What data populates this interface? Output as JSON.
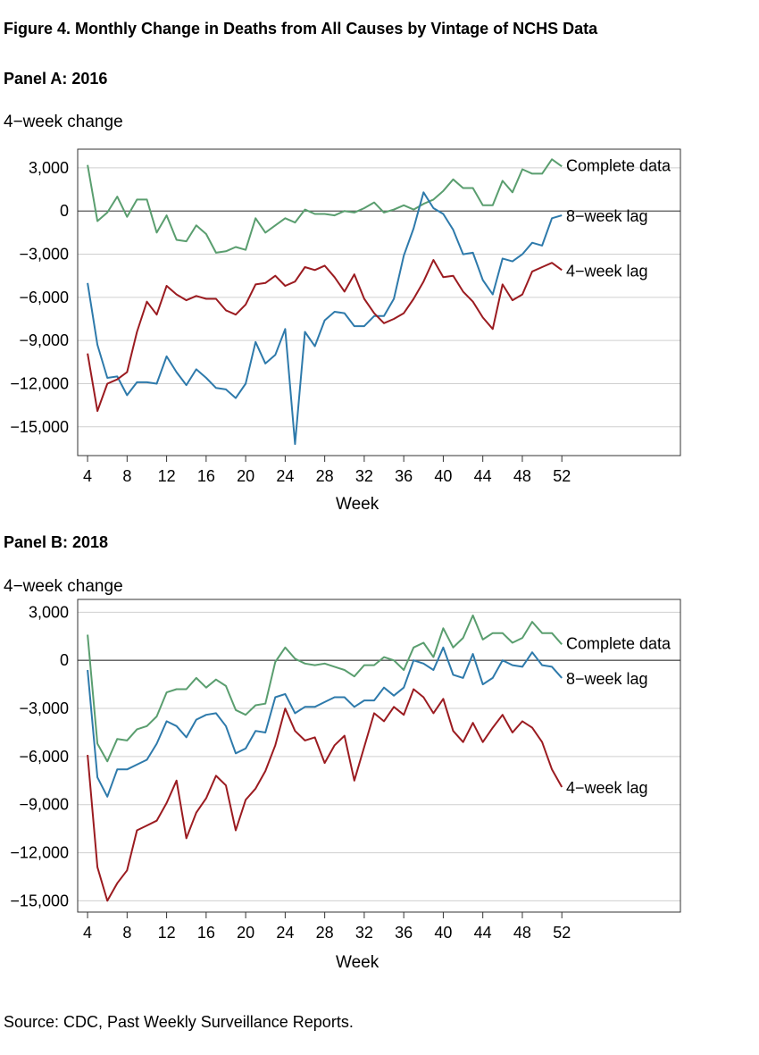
{
  "figure_title": "Figure 4. Monthly Change in Deaths from All Causes by Vintage of NCHS Data",
  "source": "Source: CDC, Past Weekly Surveillance Reports.",
  "chart_data": [
    {
      "type": "line",
      "title": "Panel A: 2016",
      "ylabel": "4−week change",
      "xlabel": "Week",
      "xlim": [
        3,
        64
      ],
      "ylim": [
        -17000,
        4300
      ],
      "x_ticks": [
        4,
        8,
        12,
        16,
        20,
        24,
        28,
        32,
        36,
        40,
        44,
        48,
        52
      ],
      "y_ticks": [
        3000,
        0,
        -3000,
        -6000,
        -9000,
        -12000,
        -15000
      ],
      "y_tick_labels": [
        "3,000",
        "0",
        "−3,000",
        "−6,000",
        "−9,000",
        "−12,000",
        "−15,000"
      ],
      "x": [
        4,
        5,
        6,
        7,
        8,
        9,
        10,
        11,
        12,
        13,
        14,
        15,
        16,
        17,
        18,
        19,
        20,
        21,
        22,
        23,
        24,
        25,
        26,
        27,
        28,
        29,
        30,
        31,
        32,
        33,
        34,
        35,
        36,
        37,
        38,
        39,
        40,
        41,
        42,
        43,
        44,
        45,
        46,
        47,
        48,
        49,
        50,
        51,
        52
      ],
      "series": [
        {
          "name": "Complete data",
          "color": "#5a9e6f",
          "values": [
            3200,
            -700,
            -100,
            1000,
            -400,
            800,
            800,
            -1500,
            -300,
            -2000,
            -2100,
            -1000,
            -1600,
            -2900,
            -2800,
            -2500,
            -2700,
            -500,
            -1500,
            -1000,
            -500,
            -800,
            100,
            -200,
            -200,
            -300,
            0,
            -100,
            200,
            600,
            -100,
            100,
            400,
            100,
            500,
            800,
            1400,
            2200,
            1600,
            1600,
            400,
            400,
            2100,
            1300,
            2900,
            2600,
            2600,
            3600,
            3100
          ]
        },
        {
          "name": "8−week lag",
          "color": "#2e7aab",
          "values": [
            -5000,
            -9300,
            -11600,
            -11500,
            -12800,
            -11900,
            -11900,
            -12000,
            -10100,
            -11200,
            -12100,
            -11000,
            -11600,
            -12300,
            -12400,
            -13000,
            -12000,
            -9100,
            -10600,
            -10000,
            -8200,
            -16200,
            -8400,
            -9400,
            -7600,
            -7000,
            -7100,
            -8000,
            -8000,
            -7300,
            -7300,
            -6100,
            -3100,
            -1200,
            1300,
            200,
            -200,
            -1300,
            -3000,
            -2900,
            -4800,
            -5800,
            -3300,
            -3500,
            -3000,
            -2200,
            -2400,
            -500,
            -300
          ]
        },
        {
          "name": "4−week lag",
          "color": "#9b1b20",
          "values": [
            -9900,
            -13900,
            -12000,
            -11700,
            -11200,
            -8400,
            -6300,
            -7200,
            -5200,
            -5800,
            -6200,
            -5900,
            -6100,
            -6100,
            -6900,
            -7200,
            -6500,
            -5100,
            -5000,
            -4500,
            -5200,
            -4900,
            -3900,
            -4100,
            -3800,
            -4600,
            -5600,
            -4400,
            -6100,
            -7100,
            -7800,
            -7500,
            -7100,
            -6100,
            -4900,
            -3400,
            -4600,
            -4500,
            -5600,
            -6300,
            -7400,
            -8200,
            -5100,
            -6200,
            -5800,
            -4200,
            -3900,
            -3600,
            -4100
          ]
        }
      ]
    },
    {
      "type": "line",
      "title": "Panel B: 2018",
      "ylabel": "4−week change",
      "xlabel": "Week",
      "xlim": [
        3,
        64
      ],
      "ylim": [
        -15700,
        3800
      ],
      "x_ticks": [
        4,
        8,
        12,
        16,
        20,
        24,
        28,
        32,
        36,
        40,
        44,
        48,
        52
      ],
      "y_ticks": [
        3000,
        0,
        -3000,
        -6000,
        -9000,
        -12000,
        -15000
      ],
      "y_tick_labels": [
        "3,000",
        "0",
        "−3,000",
        "−6,000",
        "−9,000",
        "−12,000",
        "−15,000"
      ],
      "x": [
        4,
        5,
        6,
        7,
        8,
        9,
        10,
        11,
        12,
        13,
        14,
        15,
        16,
        17,
        18,
        19,
        20,
        21,
        22,
        23,
        24,
        25,
        26,
        27,
        28,
        29,
        30,
        31,
        32,
        33,
        34,
        35,
        36,
        37,
        38,
        39,
        40,
        41,
        42,
        43,
        44,
        45,
        46,
        47,
        48,
        49,
        50,
        51,
        52
      ],
      "series": [
        {
          "name": "Complete data",
          "color": "#5a9e6f",
          "values": [
            1600,
            -5200,
            -6300,
            -4900,
            -5000,
            -4300,
            -4100,
            -3500,
            -2000,
            -1800,
            -1800,
            -1100,
            -1700,
            -1200,
            -1600,
            -3100,
            -3400,
            -2800,
            -2700,
            -100,
            800,
            100,
            -200,
            -300,
            -200,
            -400,
            -600,
            -1000,
            -300,
            -300,
            200,
            0,
            -600,
            800,
            1100,
            200,
            2000,
            800,
            1400,
            2800,
            1300,
            1700,
            1700,
            1100,
            1400,
            2400,
            1700,
            1700,
            1000
          ]
        },
        {
          "name": "8−week lag",
          "color": "#2e7aab",
          "values": [
            -600,
            -7300,
            -8500,
            -6800,
            -6800,
            -6500,
            -6200,
            -5200,
            -3800,
            -4100,
            -4800,
            -3700,
            -3400,
            -3300,
            -4100,
            -5800,
            -5500,
            -4400,
            -4500,
            -2300,
            -2100,
            -3300,
            -2900,
            -2900,
            -2600,
            -2300,
            -2300,
            -2900,
            -2500,
            -2500,
            -1700,
            -2200,
            -1700,
            0,
            -200,
            -600,
            800,
            -900,
            -1100,
            400,
            -1500,
            -1100,
            0,
            -300,
            -400,
            500,
            -300,
            -400,
            -1100
          ]
        },
        {
          "name": "4−week lag",
          "color": "#9b1b20",
          "values": [
            -5900,
            -12900,
            -15000,
            -13900,
            -13100,
            -10600,
            -10300,
            -10000,
            -8900,
            -7500,
            -11100,
            -9500,
            -8600,
            -7200,
            -7800,
            -10600,
            -8700,
            -8000,
            -6900,
            -5300,
            -3000,
            -4400,
            -5000,
            -4800,
            -6400,
            -5300,
            -4700,
            -7500,
            -5400,
            -3300,
            -3800,
            -2900,
            -3400,
            -1800,
            -2300,
            -3300,
            -2400,
            -4400,
            -5100,
            -3900,
            -5100,
            -4200,
            -3400,
            -4500,
            -3800,
            -4200,
            -5100,
            -6800,
            -7900
          ]
        }
      ]
    }
  ]
}
